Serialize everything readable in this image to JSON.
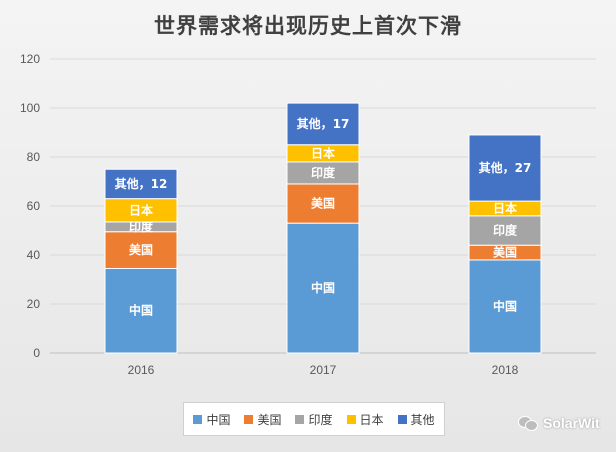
{
  "chart_data": {
    "type": "bar",
    "stacked": true,
    "title": "世界需求将出现历史上首次下滑",
    "categories": [
      "2016",
      "2017",
      "2018"
    ],
    "series": [
      {
        "name": "中国",
        "values": [
          34.5,
          53,
          38
        ],
        "color": "#5b9bd5",
        "labels": [
          "中国",
          "中国",
          "中国"
        ]
      },
      {
        "name": "美国",
        "values": [
          15,
          16,
          6
        ],
        "color": "#ed7d31",
        "labels": [
          "美国",
          "美国",
          "美国"
        ]
      },
      {
        "name": "印度",
        "values": [
          4,
          9,
          12
        ],
        "color": "#a5a5a5",
        "labels": [
          "印度",
          "印度",
          "印度"
        ]
      },
      {
        "name": "日本",
        "values": [
          9.5,
          7,
          6
        ],
        "color": "#ffc000",
        "labels": [
          "日本",
          "日本",
          "日本"
        ]
      },
      {
        "name": "其他",
        "values": [
          12,
          17,
          27
        ],
        "color": "#4472c4",
        "labels": [
          "其他，12",
          "其他，17",
          "其他，27"
        ]
      }
    ],
    "ylim": [
      0,
      120
    ],
    "yticks": [
      0,
      20,
      40,
      60,
      80,
      100,
      120
    ],
    "grid": true,
    "legend": "bottom"
  },
  "watermark": {
    "text": "SolarWit"
  }
}
